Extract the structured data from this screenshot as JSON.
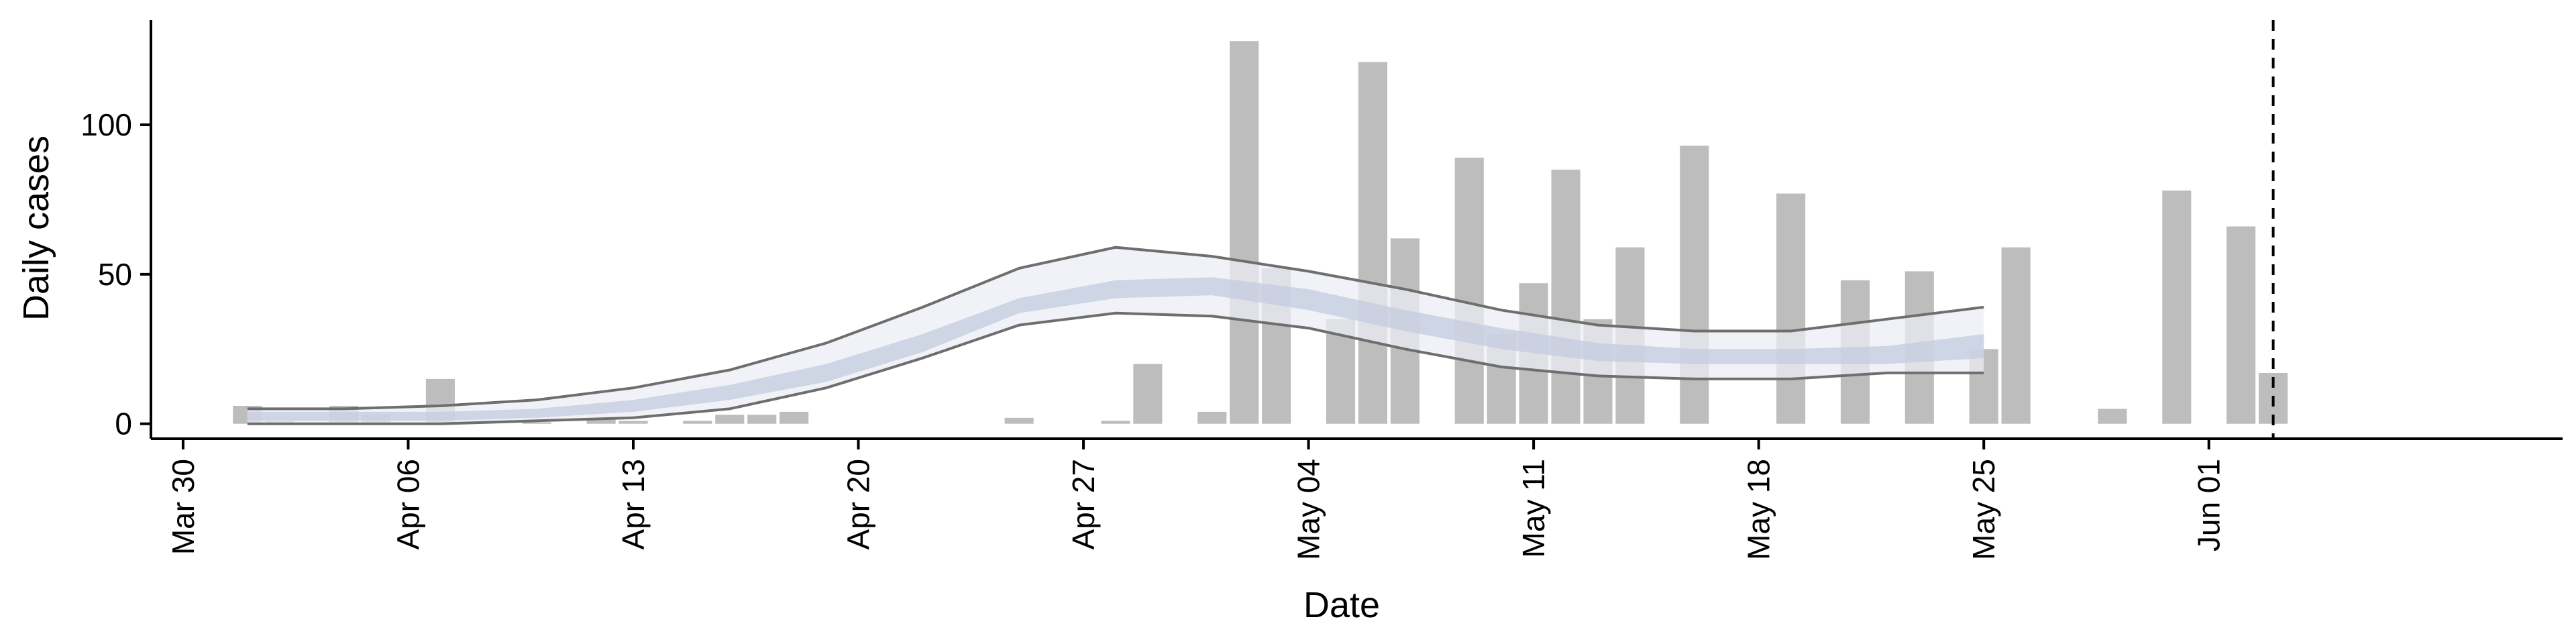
{
  "chart_data": {
    "type": "bar",
    "xlabel": "Date",
    "ylabel": "Daily cases",
    "x_type": "date",
    "xlim": [
      "2020-03-29",
      "2020-06-12"
    ],
    "ylim": [
      -5,
      135
    ],
    "x_ticks": [
      {
        "date": "2020-03-30",
        "label": "Mar 30"
      },
      {
        "date": "2020-04-06",
        "label": "Apr 06"
      },
      {
        "date": "2020-04-13",
        "label": "Apr 13"
      },
      {
        "date": "2020-04-20",
        "label": "Apr 20"
      },
      {
        "date": "2020-04-27",
        "label": "Apr 27"
      },
      {
        "date": "2020-05-04",
        "label": "May 04"
      },
      {
        "date": "2020-05-11",
        "label": "May 11"
      },
      {
        "date": "2020-05-18",
        "label": "May 18"
      },
      {
        "date": "2020-05-25",
        "label": "May 25"
      },
      {
        "date": "2020-06-01",
        "label": "Jun 01"
      }
    ],
    "y_ticks": [
      0,
      50,
      100
    ],
    "grid": false,
    "vline_date": "2020-06-03",
    "colors": {
      "bars": "#bdbdbd",
      "band_outer": "#ecedf4",
      "band_inner": "#c5cde0",
      "bound_lines": "#6e6e6e",
      "axis": "#000000"
    },
    "bars": [
      {
        "date": "2020-04-01",
        "value": 6
      },
      {
        "date": "2020-04-02",
        "value": 1
      },
      {
        "date": "2020-04-04",
        "value": 6
      },
      {
        "date": "2020-04-05",
        "value": 3
      },
      {
        "date": "2020-04-07",
        "value": 15
      },
      {
        "date": "2020-04-10",
        "value": 0.5
      },
      {
        "date": "2020-04-12",
        "value": 2
      },
      {
        "date": "2020-04-13",
        "value": 1
      },
      {
        "date": "2020-04-15",
        "value": 1
      },
      {
        "date": "2020-04-16",
        "value": 3
      },
      {
        "date": "2020-04-17",
        "value": 3
      },
      {
        "date": "2020-04-18",
        "value": 4
      },
      {
        "date": "2020-04-25",
        "value": 2
      },
      {
        "date": "2020-04-28",
        "value": 1
      },
      {
        "date": "2020-04-29",
        "value": 20
      },
      {
        "date": "2020-05-01",
        "value": 4
      },
      {
        "date": "2020-05-02",
        "value": 128
      },
      {
        "date": "2020-05-03",
        "value": 52
      },
      {
        "date": "2020-05-05",
        "value": 35
      },
      {
        "date": "2020-05-06",
        "value": 121
      },
      {
        "date": "2020-05-07",
        "value": 62
      },
      {
        "date": "2020-05-09",
        "value": 89
      },
      {
        "date": "2020-05-10",
        "value": 30
      },
      {
        "date": "2020-05-11",
        "value": 47
      },
      {
        "date": "2020-05-12",
        "value": 85
      },
      {
        "date": "2020-05-13",
        "value": 35
      },
      {
        "date": "2020-05-14",
        "value": 59
      },
      {
        "date": "2020-05-16",
        "value": 93
      },
      {
        "date": "2020-05-19",
        "value": 77
      },
      {
        "date": "2020-05-21",
        "value": 48
      },
      {
        "date": "2020-05-23",
        "value": 51
      },
      {
        "date": "2020-05-25",
        "value": 25
      },
      {
        "date": "2020-05-26",
        "value": 59
      },
      {
        "date": "2020-05-29",
        "value": 5
      },
      {
        "date": "2020-05-31",
        "value": 78
      },
      {
        "date": "2020-06-02",
        "value": 66
      },
      {
        "date": "2020-06-03",
        "value": 17
      }
    ],
    "estimate": {
      "dates": [
        "2020-04-01",
        "2020-04-04",
        "2020-04-07",
        "2020-04-10",
        "2020-04-13",
        "2020-04-16",
        "2020-04-19",
        "2020-04-22",
        "2020-04-25",
        "2020-04-28",
        "2020-05-01",
        "2020-05-04",
        "2020-05-07",
        "2020-05-10",
        "2020-05-13",
        "2020-05-16",
        "2020-05-19",
        "2020-05-22",
        "2020-05-25"
      ],
      "upper": [
        5,
        5,
        6,
        8,
        12,
        18,
        27,
        39,
        52,
        59,
        56,
        51,
        45,
        38,
        33,
        31,
        31,
        35,
        39
      ],
      "lower": [
        0,
        0,
        0,
        1,
        2,
        5,
        12,
        22,
        33,
        37,
        36,
        32,
        25,
        19,
        16,
        15,
        15,
        17,
        17
      ],
      "inner_upper": [
        4,
        4,
        4,
        5,
        8,
        13,
        20,
        30,
        42,
        48,
        49,
        45,
        38,
        32,
        27,
        25,
        25,
        26,
        30
      ],
      "inner_lower": [
        1,
        1,
        1,
        2,
        4,
        8,
        14,
        24,
        37,
        42,
        43,
        38,
        31,
        25,
        21,
        20,
        20,
        20,
        22
      ]
    }
  }
}
